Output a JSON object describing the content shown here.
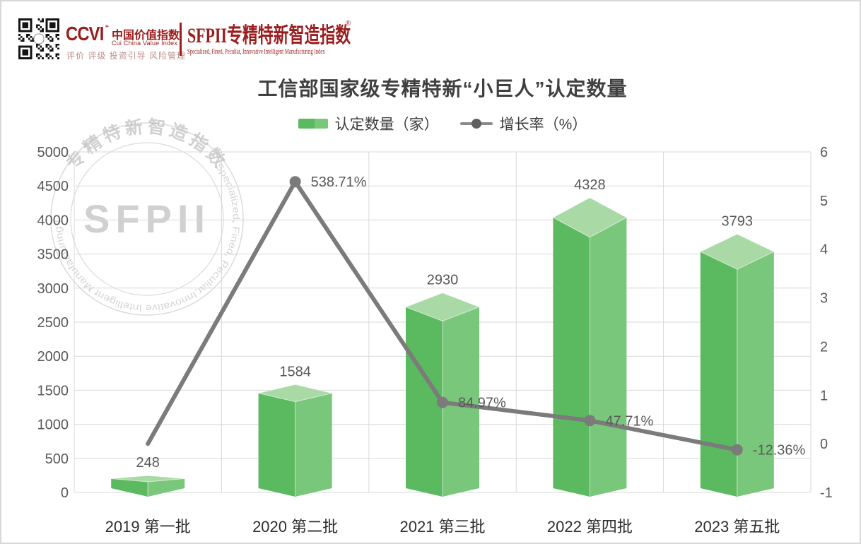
{
  "header": {
    "ccvi": "CCVI",
    "ccvi_mark": "“",
    "cn_name": "中国价值指数",
    "en_name": "Cui China Value Index",
    "tagline": "评价  评级  投资引导  风险管理",
    "sfpii_title": "SFPII专精特新智造指数",
    "sfpii_mark": "®",
    "sfpii_subtitle": "Specialized, Fined, Peculiar, Innovative  Intelligent Manufacturing Index",
    "brand_color": "#9b1c1c"
  },
  "watermark": {
    "center_text": "SFPII",
    "ring_text_cn": "专精特新智造指数",
    "ring_text_en": "Specialized, Fined, Peculiar,Innovative  Intelligent Manufacturing Index(SFpii)"
  },
  "chart_data": {
    "type": "bar+line",
    "title": "工信部国家级专精特新“小巨人”认定数量",
    "legend_position": "top",
    "grid": true,
    "categories": [
      "2019 第一批",
      "2020 第二批",
      "2021 第三批",
      "2022 第四批",
      "2023 第五批"
    ],
    "series": [
      {
        "name": "认定数量（家）",
        "type": "bar",
        "axis": "left",
        "values": [
          248,
          1584,
          2930,
          4328,
          3793
        ],
        "labels": [
          "248",
          "1584",
          "2930",
          "4328",
          "3793"
        ]
      },
      {
        "name": "增长率（%）",
        "type": "line",
        "axis": "right",
        "values_percent": [
          0,
          538.71,
          84.97,
          47.71,
          -12.36
        ],
        "labels": [
          "",
          "538.71%",
          "84.97%",
          "47.71%",
          "-12.36%"
        ]
      }
    ],
    "left_axis": {
      "min": 0,
      "max": 5000,
      "step": 500,
      "ticks": [
        "0",
        "500",
        "1000",
        "1500",
        "2000",
        "2500",
        "3000",
        "3500",
        "4000",
        "4500",
        "5000"
      ]
    },
    "right_axis": {
      "min": -1,
      "max": 6,
      "step": 1,
      "ticks": [
        "-1",
        "0",
        "1",
        "2",
        "3",
        "4",
        "5",
        "6"
      ]
    },
    "colors": {
      "bar_left": "#5bb95f",
      "bar_right": "#78c77b",
      "bar_top": "#a9daa5",
      "line": "#7b7b7b",
      "grid": "#d9d9d9",
      "value_label": "#595959",
      "axis_label": "#595959",
      "x_label": "#2e2e2e",
      "title": "#404040"
    }
  }
}
